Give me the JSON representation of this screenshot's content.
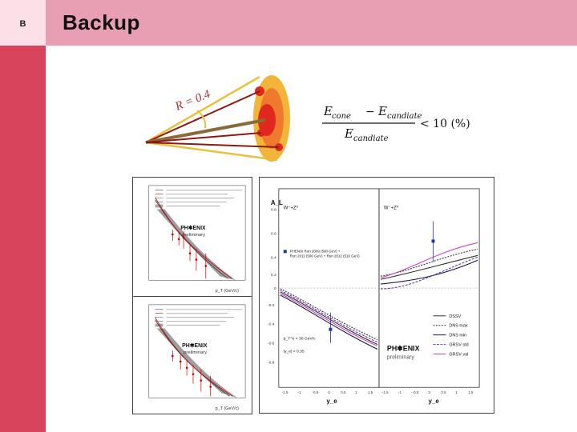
{
  "slide": {
    "section_marker": "B",
    "title": "Backup",
    "colors": {
      "header_bg": "#e89eb3",
      "marker_bg": "#fbe0e7",
      "sidebar_bg": "#d74459"
    }
  },
  "cone": {
    "label": "R = 0.4"
  },
  "formula": {
    "numerator": "E_cone − E_candiate",
    "numerator_a": "E",
    "numerator_a_sub": "cone",
    "numerator_b": "E",
    "numerator_b_sub": "candiate",
    "denominator": "E",
    "denominator_sub": "candiate",
    "relation": "< 10 (%)"
  },
  "plots": {
    "top_left": {
      "brand_line1": "PH✱ENIX",
      "brand_line2": "preliminary",
      "xlabel": "p_T (GeV/c)"
    },
    "bottom_left": {
      "brand_line1": "PH✱ENIX",
      "brand_line2": "preliminary",
      "xlabel": "p_T (GeV/c)"
    },
    "right": {
      "ylabel": "A_L",
      "panel_left_label": "W⁺+Z⁰",
      "panel_right_label": "W⁻+Z⁰",
      "legend_run_1": "PHENIX Run 2009 (500 GeV) +",
      "legend_run_2": "Run 2011 (500 GeV) + Run 2012 (510 GeV)",
      "cut_pt": "p_T^e > 30 GeV/c",
      "cut_eta": "|y_e| < 0.35",
      "brand_line1": "PH✱ENIX",
      "brand_line2": "preliminary",
      "xlabel_left": "y_e",
      "xlabel_right": "y_e",
      "legend": [
        "DSSV",
        "DNS max",
        "DNS min",
        "GRSV std",
        "GRSV val"
      ]
    }
  }
}
